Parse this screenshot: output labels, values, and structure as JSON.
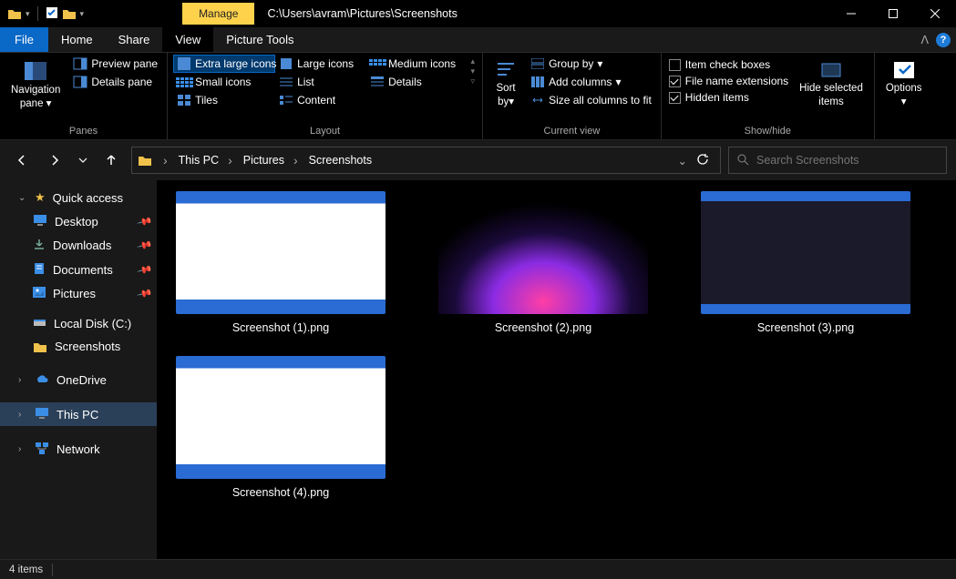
{
  "window": {
    "path": "C:\\Users\\avram\\Pictures\\Screenshots",
    "manage_tab": "Manage",
    "picture_tools": "Picture Tools"
  },
  "tabs": {
    "file": "File",
    "home": "Home",
    "share": "Share",
    "view": "View"
  },
  "ribbon": {
    "panes_group": "Panes",
    "navigation_pane": "Navigation",
    "navigation_pane_sub": "pane",
    "preview_pane": "Preview pane",
    "details_pane": "Details pane",
    "layout_group": "Layout",
    "extra_large_icons": "Extra large icons",
    "large_icons": "Large icons",
    "medium_icons": "Medium icons",
    "small_icons": "Small icons",
    "list": "List",
    "details": "Details",
    "tiles": "Tiles",
    "content": "Content",
    "current_view_group": "Current view",
    "sort_by": "Sort",
    "sort_by_sub": "by",
    "group_by": "Group by",
    "add_columns": "Add columns",
    "size_all_columns": "Size all columns to fit",
    "show_hide_group": "Show/hide",
    "item_check_boxes": "Item check boxes",
    "file_name_extensions": "File name extensions",
    "hidden_items": "Hidden items",
    "hide_selected": "Hide selected",
    "hide_selected_sub": "items",
    "options": "Options"
  },
  "breadcrumb": {
    "this_pc": "This PC",
    "pictures": "Pictures",
    "screenshots": "Screenshots"
  },
  "search": {
    "placeholder": "Search Screenshots"
  },
  "sidebar": {
    "quick_access": "Quick access",
    "desktop": "Desktop",
    "downloads": "Downloads",
    "documents": "Documents",
    "pictures": "Pictures",
    "removable_disk": "Local Disk (C:)",
    "screenshots": "Screenshots",
    "onedrive": "OneDrive",
    "this_pc": "This PC",
    "network": "Network"
  },
  "files": [
    {
      "name": "Screenshot (1).png",
      "thumb_css": "background:linear-gradient(#2a6bd4,#2a6bd4 10%,#fff 10%,#fff 88%,#2a6bd4 88%);position:relative"
    },
    {
      "name": "Screenshot (2).png",
      "thumb_css": "background:radial-gradient(ellipse 60% 80% at 50% 90%, #ff3ea5, #8a2be2 40%, #1a0a3a 70%, #000 100%)"
    },
    {
      "name": "Screenshot (3).png",
      "thumb_css": "background:linear-gradient(#2a6bd4,#2a6bd4 8%,#1a1a2a 8%,#1a1a2a 92%,#2a6bd4 92%)"
    },
    {
      "name": "Screenshot (4).png",
      "thumb_css": "background:linear-gradient(#2a6bd4,#2a6bd4 10%,#fff 10%,#fff 88%,#2a6bd4 88%)"
    }
  ],
  "status": {
    "item_count": "4 items"
  },
  "colors": {
    "accent": "#0a68c7",
    "manage_bg": "#ffd24c",
    "bg_dark": "#000000",
    "bg_panel": "#191919"
  }
}
